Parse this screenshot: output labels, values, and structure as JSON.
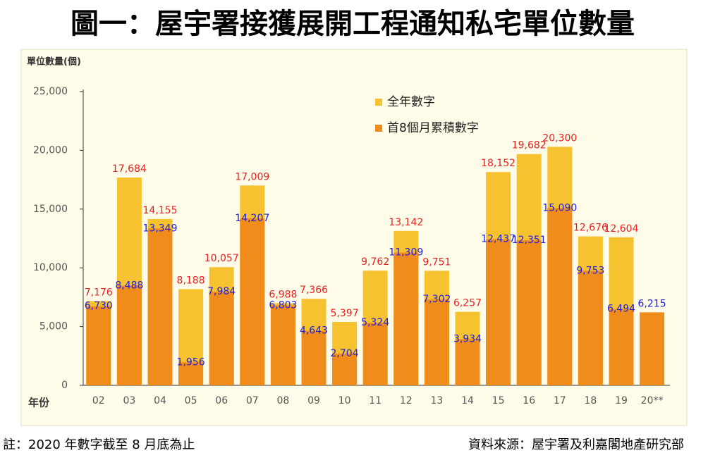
{
  "chart_data": {
    "type": "overlap-bar",
    "title": "圖一：屋宇署接獲展開工程通知私宅單位數量",
    "y_label": "單位數量(個)",
    "x_label": "年份",
    "footnote": "註：2020 年數字截至 8 月底為止",
    "source": "資料來源：屋宇署及利嘉閣地產研究部",
    "categories": [
      "02",
      "03",
      "04",
      "05",
      "06",
      "07",
      "08",
      "09",
      "10",
      "11",
      "12",
      "13",
      "14",
      "15",
      "16",
      "17",
      "18",
      "19",
      "20**"
    ],
    "series": [
      {
        "name": "全年數字",
        "color": "#f7c22f",
        "label_color": "#e8211f",
        "values": [
          7176,
          17684,
          14155,
          8188,
          10057,
          17009,
          6988,
          7366,
          5397,
          9762,
          13142,
          9751,
          6257,
          18152,
          19682,
          20300,
          12676,
          12604,
          null
        ],
        "value_labels": [
          "7,176",
          "17,684",
          "14,155",
          "8,188",
          "10,057",
          "17,009",
          "6,988",
          "7,366",
          "5,397",
          "9,762",
          "13,142",
          "9,751",
          "6,257",
          "18,152",
          "19,682",
          "20,300",
          "12,676",
          "12,604",
          null
        ]
      },
      {
        "name": "首8個月累積數字",
        "color": "#ef8c1c",
        "label_color": "#1c1ce0",
        "values": [
          6730,
          8488,
          13349,
          1956,
          7984,
          14207,
          6803,
          4643,
          2704,
          5324,
          11309,
          7302,
          3934,
          12437,
          12351,
          15090,
          9753,
          6494,
          6215
        ],
        "value_labels": [
          "6,730",
          "8,488",
          "13,349",
          "1,956",
          "7,984",
          "14,207",
          "6,803",
          "4,643",
          "2,704",
          "5,324",
          "11,309",
          "7,302",
          "3,934",
          "12,437",
          "12,351",
          "15,090",
          "9,753",
          "6,494",
          "6,215"
        ]
      }
    ],
    "ylim": [
      0,
      25000
    ],
    "yticks": [
      0,
      {
        "value": 5000,
        "label": "5,000"
      },
      {
        "value": 10000,
        "label": "10,000"
      },
      {
        "value": 15000,
        "label": "15,000"
      },
      {
        "value": 20000,
        "label": "20,000"
      },
      {
        "value": 25000,
        "label": "25,000"
      }
    ],
    "legend": "top-center"
  }
}
